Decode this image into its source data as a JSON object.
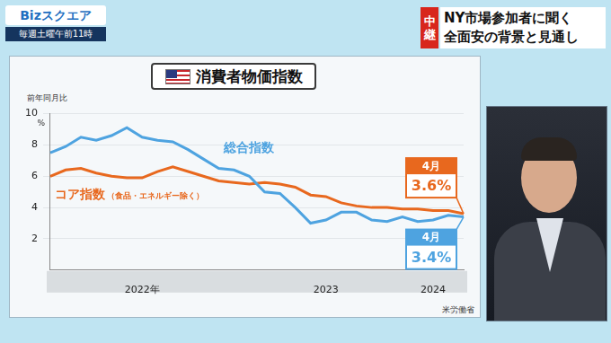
{
  "header": {
    "program": "Bizスクエア",
    "schedule": "毎週土曜午前11時",
    "live_tag": "中継",
    "headline": [
      "NY市場参加者に聞く",
      "全面安の背景と見通し"
    ]
  },
  "chart_data": {
    "type": "line",
    "title": "消費者物価指数",
    "ylabel": "前年同月比",
    "y_unit": "%",
    "categories": [
      null,
      null,
      null,
      null,
      null,
      null,
      "2022年",
      null,
      null,
      null,
      null,
      null,
      null,
      null,
      null,
      null,
      null,
      null,
      "2023",
      null,
      null,
      null,
      null,
      null,
      null,
      "2024",
      null,
      null
    ],
    "series": [
      {
        "name": "総合指数",
        "color": "#4ea3e0",
        "values": [
          7.5,
          7.9,
          8.5,
          8.3,
          8.6,
          9.1,
          8.5,
          8.3,
          8.2,
          7.7,
          7.1,
          6.5,
          6.4,
          6.0,
          5.0,
          4.9,
          4.0,
          3.0,
          3.2,
          3.7,
          3.7,
          3.2,
          3.1,
          3.4,
          3.1,
          3.2,
          3.5,
          3.4
        ],
        "end_label": {
          "text": "4月",
          "value_label": "3.4%"
        }
      },
      {
        "name": "コア指数",
        "name_detail": "（食品・エネルギー除く）",
        "color": "#e8681e",
        "values": [
          6.0,
          6.4,
          6.5,
          6.2,
          6.0,
          5.9,
          5.9,
          6.3,
          6.6,
          6.3,
          6.0,
          5.7,
          5.6,
          5.5,
          5.6,
          5.5,
          5.3,
          4.8,
          4.7,
          4.3,
          4.1,
          4.0,
          4.0,
          3.9,
          3.9,
          3.8,
          3.8,
          3.6
        ],
        "end_label": {
          "text": "4月",
          "value_label": "3.6%"
        }
      }
    ],
    "ylim": [
      0,
      10
    ],
    "yticks": [
      2,
      4,
      6,
      8,
      10
    ],
    "grid": true,
    "source": "米労働省"
  }
}
